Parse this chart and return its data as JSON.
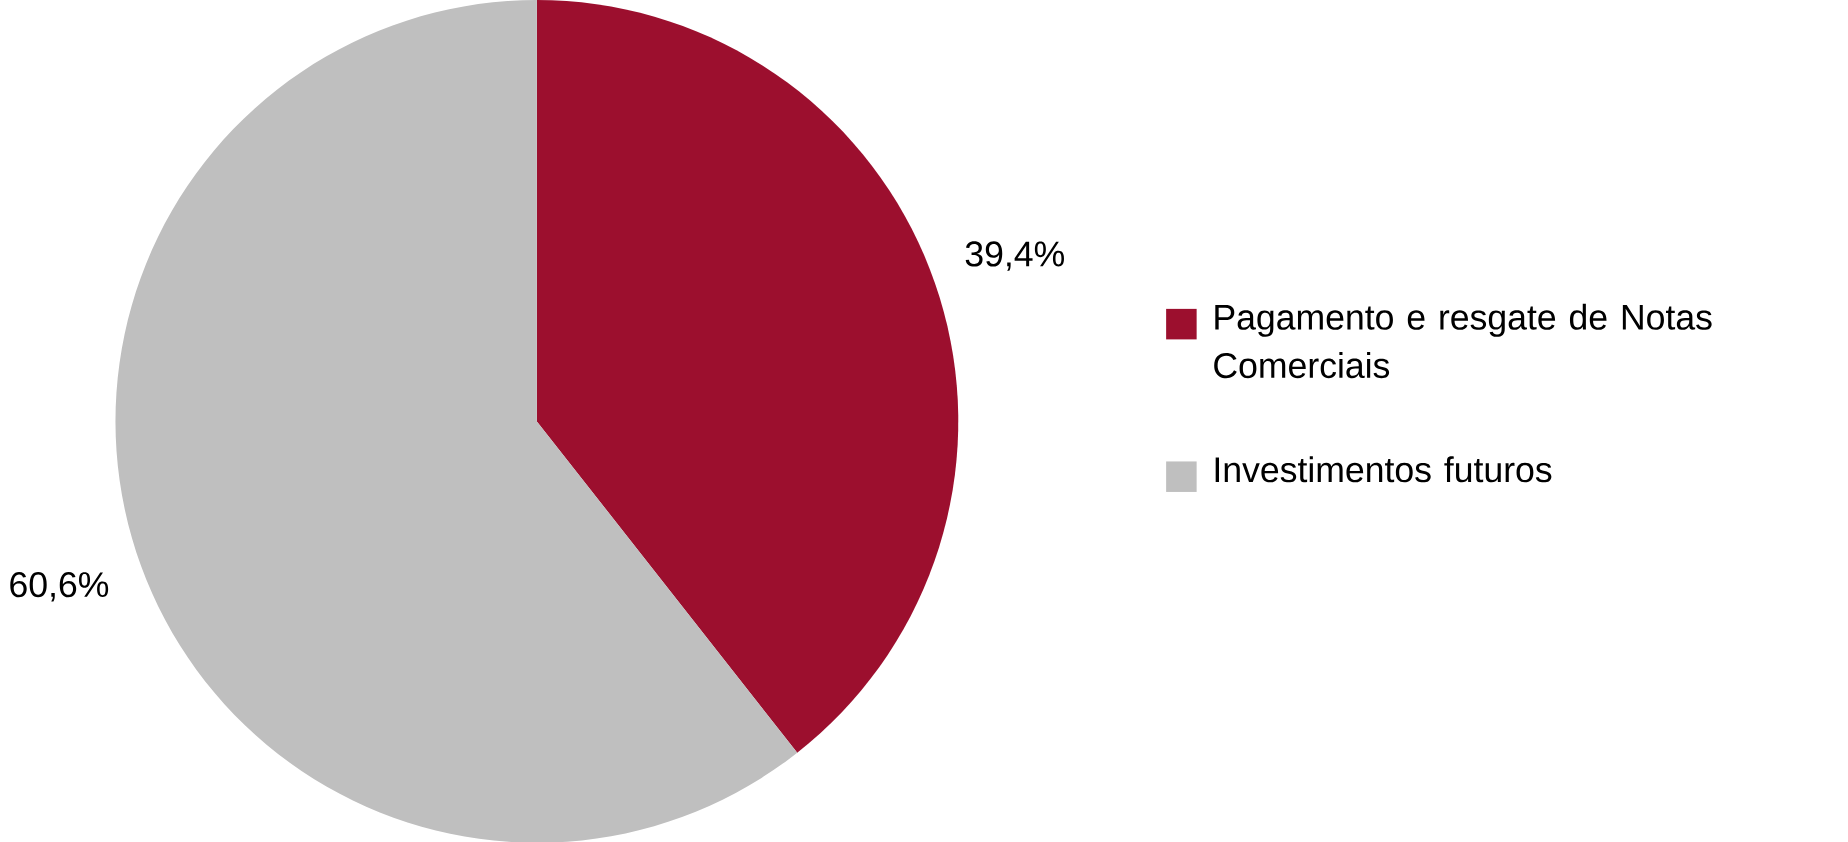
{
  "chart_data": {
    "type": "pie",
    "categories": [
      "Pagamento e resgate de Notas Comerciais",
      "Investimentos futuros"
    ],
    "values": [
      39.4,
      60.6
    ],
    "colors": [
      "#9c0f2e",
      "#bfbfbf"
    ],
    "value_labels": [
      "39,4%",
      "60,6%"
    ],
    "legend": "right"
  }
}
